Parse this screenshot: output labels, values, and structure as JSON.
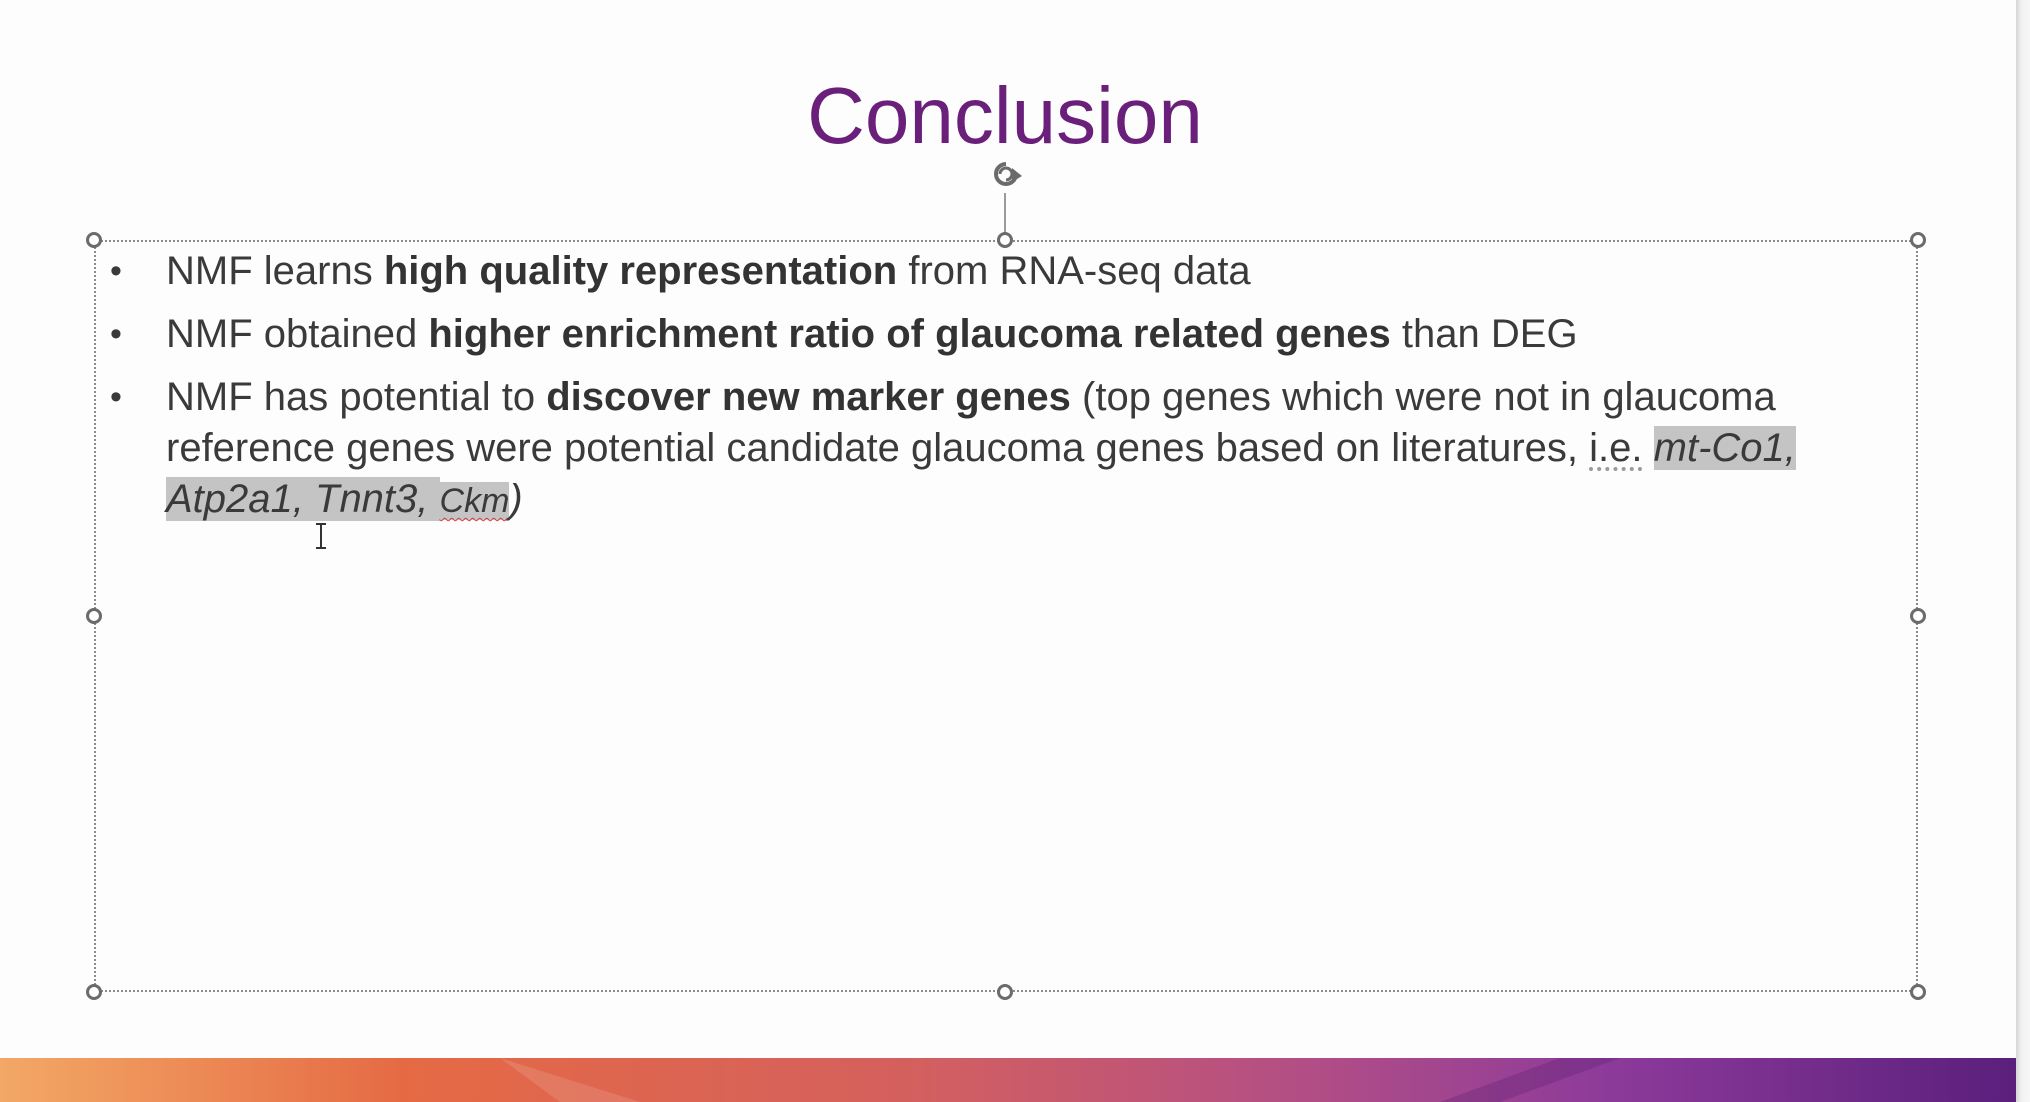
{
  "slide": {
    "title": "Conclusion",
    "bullets": [
      {
        "segments": [
          {
            "text": "NMF learns ",
            "style": "normal"
          },
          {
            "text": "high quality representation",
            "style": "bold"
          },
          {
            "text": " from RNA-seq data",
            "style": "normal"
          }
        ]
      },
      {
        "segments": [
          {
            "text": "NMF obtained ",
            "style": "normal"
          },
          {
            "text": "higher enrichment ratio of glaucoma related genes",
            "style": "bold"
          },
          {
            "text": " than DEG",
            "style": "normal"
          }
        ]
      },
      {
        "segments": [
          {
            "text": "NMF has potential to ",
            "style": "normal"
          },
          {
            "text": "discover new marker genes",
            "style": "bold"
          },
          {
            "text": " (top genes which were not in glaucoma reference genes were potential candidate glaucoma genes based on literatures, ",
            "style": "normal"
          },
          {
            "text": "i.e.",
            "style": "dotted"
          },
          {
            "text": " ",
            "style": "normal"
          },
          {
            "text": "mt-Co1, Atp2a1, Tnnt3, ",
            "style": "italic-selected"
          },
          {
            "text": "Ckm",
            "style": "italic-selected-small-squiggle"
          },
          {
            "text": ")",
            "style": "italic"
          }
        ]
      }
    ],
    "bullet_char": "•"
  },
  "colors": {
    "title": "#6a1f7a",
    "selection": "#c4c4c4",
    "footer_gradient": [
      "#f0a060",
      "#e06a45",
      "#c8567a",
      "#8a3a98",
      "#5a1f7a"
    ]
  },
  "icons": {
    "rotate": "rotate-handle-icon",
    "cursor": "text-cursor-icon"
  }
}
